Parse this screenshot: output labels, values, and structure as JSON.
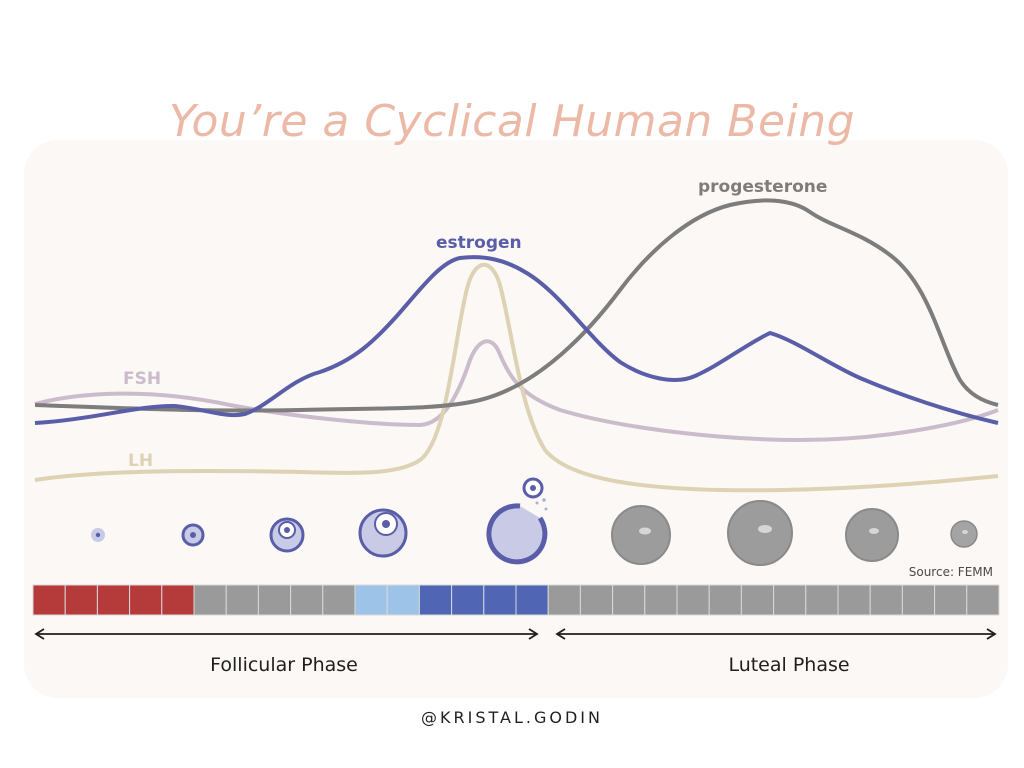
{
  "title": "You’re a Cyclical Human Being",
  "labels": {
    "fsh": "FSH",
    "lh": "LH",
    "estrogen": "estrogen",
    "progesterone": "progesterone"
  },
  "source": "Source: FEMM",
  "phases": {
    "follicular": "Follicular Phase",
    "luteal": "Luteal Phase"
  },
  "handle": "@KRISTAL.GODIN",
  "colors": {
    "title": "#edb9a7",
    "estrogen": "#5a5ea8",
    "progesterone": "#7d7d7d",
    "fsh": "#cbbccb",
    "lh": "#ddd2b3",
    "menstruation": "#b53a3a",
    "grey_day": "#9a9a9a",
    "light_blue_day": "#9ec3e8",
    "blue_day": "#5065b3"
  },
  "day_colors": [
    "menstruation",
    "menstruation",
    "menstruation",
    "menstruation",
    "menstruation",
    "grey_day",
    "grey_day",
    "grey_day",
    "grey_day",
    "grey_day",
    "light_blue_day",
    "light_blue_day",
    "blue_day",
    "blue_day",
    "blue_day",
    "blue_day",
    "grey_day",
    "grey_day",
    "grey_day",
    "grey_day",
    "grey_day",
    "grey_day",
    "grey_day",
    "grey_day",
    "grey_day",
    "grey_day",
    "grey_day",
    "grey_day",
    "grey_day",
    "grey_day"
  ]
}
